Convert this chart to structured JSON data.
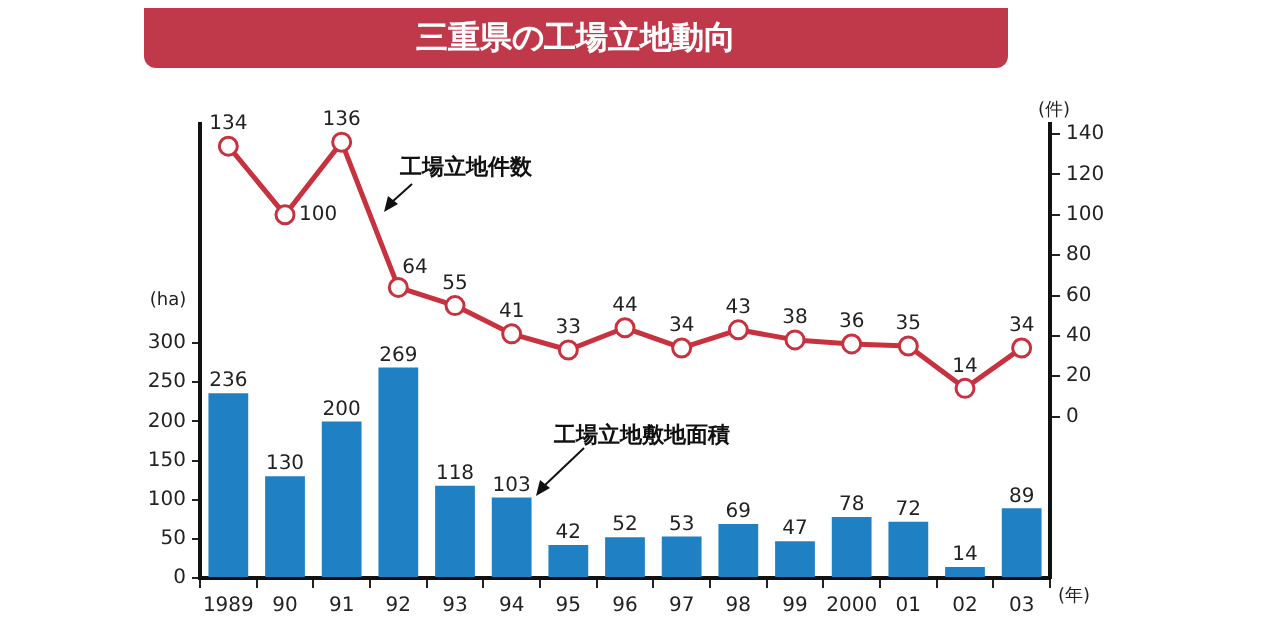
{
  "chart_data": {
    "type": "bar",
    "title": "三重県の工場立地動向",
    "xlabel": "(年)",
    "ylabel": "(ha)",
    "y2label": "(件)",
    "categories": [
      "1989",
      "90",
      "91",
      "92",
      "93",
      "94",
      "95",
      "96",
      "97",
      "98",
      "99",
      "2000",
      "01",
      "02",
      "03"
    ],
    "series": [
      {
        "name": "工場立地件数",
        "type": "line",
        "axis": "y2",
        "color": "#c8313e",
        "marker": "circle",
        "values": [
          134,
          100,
          136,
          64,
          55,
          41,
          33,
          44,
          34,
          43,
          38,
          36,
          35,
          14,
          34
        ]
      },
      {
        "name": "工場立地敷地面積",
        "color": "#1f80c4",
        "values": [
          236,
          130,
          200,
          269,
          118,
          103,
          42,
          52,
          53,
          69,
          47,
          78,
          72,
          14,
          89
        ]
      }
    ],
    "ylim": [
      0,
      580
    ],
    "yticks": [
      0,
      50,
      100,
      150,
      200,
      250,
      300
    ],
    "y2lim": [
      -80,
      145
    ],
    "y2ticks": [
      0,
      20,
      40,
      60,
      80,
      100,
      120,
      140
    ],
    "data_labels": true,
    "grid": false,
    "legend": false
  }
}
